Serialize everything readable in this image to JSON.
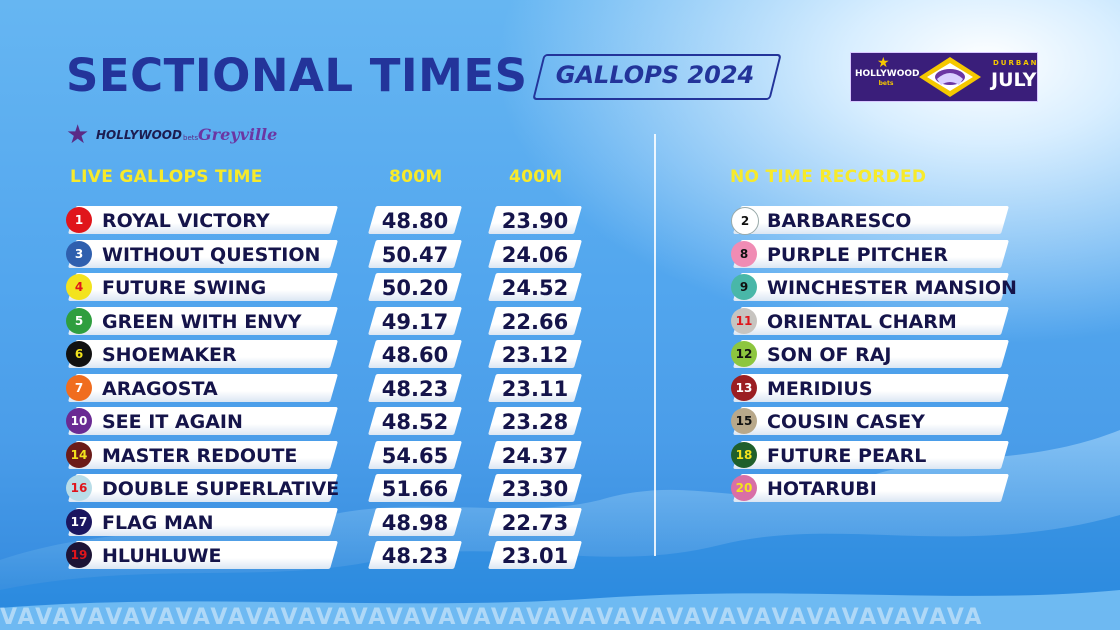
{
  "header": {
    "title": "SECTIONAL TIMES",
    "subtitle": "GALLOPS 2024"
  },
  "sponsor_logo": {
    "brand": "HOLLYWOOD",
    "brand_small": "bets",
    "event_top": "DURBAN",
    "event": "JULY"
  },
  "venue_logo": {
    "brand": "HOLLYWOOD",
    "brand_small": "bets",
    "venue": "Greyville"
  },
  "live_table": {
    "heading": "LIVE GALLOPS TIME",
    "col_800": "800M",
    "col_400": "400M",
    "rows": [
      {
        "num": "1",
        "name": "ROYAL VICTORY",
        "t800": "48.80",
        "t400": "23.90",
        "bg": "#e0151b",
        "fg": "#ffffff"
      },
      {
        "num": "3",
        "name": "WITHOUT QUESTION",
        "t800": "50.47",
        "t400": "24.06",
        "bg": "#2f5fae",
        "fg": "#ffffff"
      },
      {
        "num": "4",
        "name": "FUTURE SWING",
        "t800": "50.20",
        "t400": "24.52",
        "bg": "#f3e31d",
        "fg": "#e0151b"
      },
      {
        "num": "5",
        "name": "GREEN WITH ENVY",
        "t800": "49.17",
        "t400": "22.66",
        "bg": "#2f9e3f",
        "fg": "#ffffff"
      },
      {
        "num": "6",
        "name": "SHOEMAKER",
        "t800": "48.60",
        "t400": "23.12",
        "bg": "#111111",
        "fg": "#f3e31d"
      },
      {
        "num": "7",
        "name": "ARAGOSTA",
        "t800": "48.23",
        "t400": "23.11",
        "bg": "#f06d1f",
        "fg": "#ffffff"
      },
      {
        "num": "10",
        "name": "SEE IT AGAIN",
        "t800": "48.52",
        "t400": "23.28",
        "bg": "#6a2a93",
        "fg": "#ffffff"
      },
      {
        "num": "14",
        "name": "MASTER REDOUTE",
        "t800": "54.65",
        "t400": "24.37",
        "bg": "#6b1b18",
        "fg": "#f3e31d"
      },
      {
        "num": "16",
        "name": "DOUBLE SUPERLATIVE",
        "t800": "51.66",
        "t400": "23.30",
        "bg": "#b9dde8",
        "fg": "#e0151b"
      },
      {
        "num": "17",
        "name": "FLAG MAN",
        "t800": "48.98",
        "t400": "22.73",
        "bg": "#1b1660",
        "fg": "#ffffff"
      },
      {
        "num": "19",
        "name": "HLUHLUWE",
        "t800": "48.23",
        "t400": "23.01",
        "bg": "#1d1436",
        "fg": "#e0151b"
      }
    ]
  },
  "no_time_table": {
    "heading": "NO TIME RECORDED",
    "rows": [
      {
        "num": "2",
        "name": "BARBARESCO",
        "bg": "#ffffff",
        "fg": "#111111"
      },
      {
        "num": "8",
        "name": "PURPLE PITCHER",
        "bg": "#f08cb4",
        "fg": "#111111"
      },
      {
        "num": "9",
        "name": "WINCHESTER MANSION",
        "bg": "#49b7a8",
        "fg": "#111111"
      },
      {
        "num": "11",
        "name": "ORIENTAL CHARM",
        "bg": "#c7c4c0",
        "fg": "#e0151b"
      },
      {
        "num": "12",
        "name": "SON OF RAJ",
        "bg": "#8dc63f",
        "fg": "#111111"
      },
      {
        "num": "13",
        "name": "MERIDIUS",
        "bg": "#9b1e22",
        "fg": "#ffffff"
      },
      {
        "num": "15",
        "name": "COUSIN CASEY",
        "bg": "#b8a88a",
        "fg": "#111111"
      },
      {
        "num": "18",
        "name": "FUTURE PEARL",
        "bg": "#1f5f2c",
        "fg": "#f3e31d"
      },
      {
        "num": "20",
        "name": "HOTARUBI",
        "bg": "#d96fa6",
        "fg": "#f3e31d"
      }
    ]
  }
}
